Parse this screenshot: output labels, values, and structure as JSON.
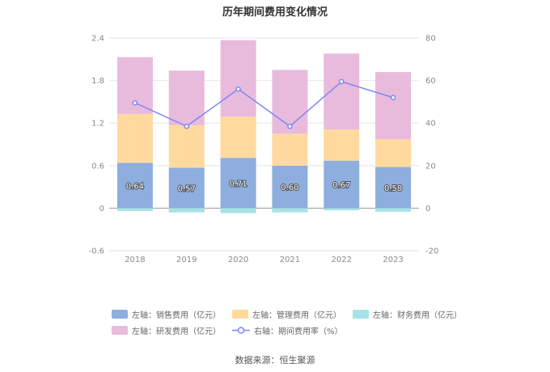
{
  "chart_data": {
    "type": "bar",
    "title": "历年期间费用变化情况",
    "categories": [
      "2018",
      "2019",
      "2020",
      "2021",
      "2022",
      "2023"
    ],
    "y_left": {
      "ylim": [
        -0.6,
        2.4
      ],
      "ticks": [
        "-0.6",
        "0",
        "0.6",
        "1.2",
        "1.8",
        "2.4"
      ]
    },
    "y_right": {
      "ylim": [
        -20,
        80
      ],
      "ticks": [
        "-20",
        "0",
        "20",
        "40",
        "60",
        "80"
      ]
    },
    "stacked": true,
    "series": [
      {
        "name": "左轴：销售费用（亿元）",
        "axis": "left",
        "type": "bar",
        "color": "#8eaedf",
        "values": [
          0.64,
          0.57,
          0.71,
          0.6,
          0.67,
          0.58
        ],
        "labels": [
          "0.64",
          "0.57",
          "0.71",
          "0.60",
          "0.67",
          "0.58"
        ]
      },
      {
        "name": "左轴：管理费用（亿元）",
        "axis": "left",
        "type": "bar",
        "color": "#ffd99e",
        "values": [
          0.69,
          0.6,
          0.58,
          0.45,
          0.44,
          0.39
        ]
      },
      {
        "name": "左轴：财务费用（亿元）",
        "axis": "left",
        "type": "bar",
        "color": "#a6e3e6",
        "values": [
          -0.04,
          -0.06,
          -0.07,
          -0.06,
          -0.03,
          -0.05
        ]
      },
      {
        "name": "左轴：研发费用（亿元）",
        "axis": "left",
        "type": "bar",
        "color": "#e8bbdc",
        "values": [
          0.8,
          0.77,
          1.08,
          0.9,
          1.07,
          0.95
        ]
      },
      {
        "name": "右轴：期间费用率（%）",
        "axis": "right",
        "type": "line",
        "color": "#7d86f3",
        "values": [
          49.5,
          38.5,
          56.0,
          38.5,
          59.5,
          52.0
        ]
      }
    ],
    "grid": true,
    "legend_position": "bottom"
  },
  "source": "数据来源：恒生聚源"
}
